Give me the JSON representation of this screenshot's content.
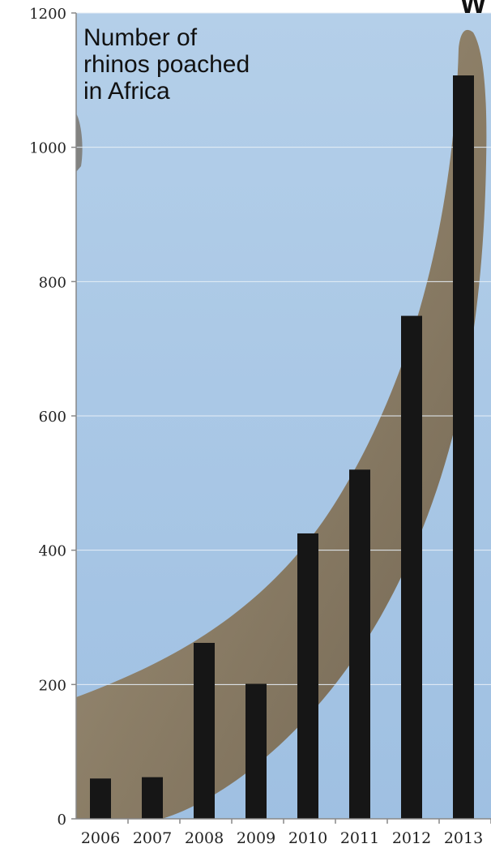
{
  "chart_data": {
    "type": "bar",
    "title_lines": [
      "Number of",
      "rhinos poached",
      "in Africa"
    ],
    "categories": [
      "2006",
      "2007",
      "2008",
      "2009",
      "2010",
      "2011",
      "2012",
      "2013"
    ],
    "values": [
      60,
      62,
      262,
      201,
      425,
      520,
      749,
      1107
    ],
    "ylim": [
      0,
      1200
    ],
    "yticks": [
      0,
      200,
      400,
      600,
      800,
      1000,
      1200
    ],
    "grid": true,
    "bar_color": "#161616",
    "background_description_colors": {
      "sky": "#aac8e6",
      "horn": "#8c7a5e"
    }
  },
  "corner_text": "W"
}
